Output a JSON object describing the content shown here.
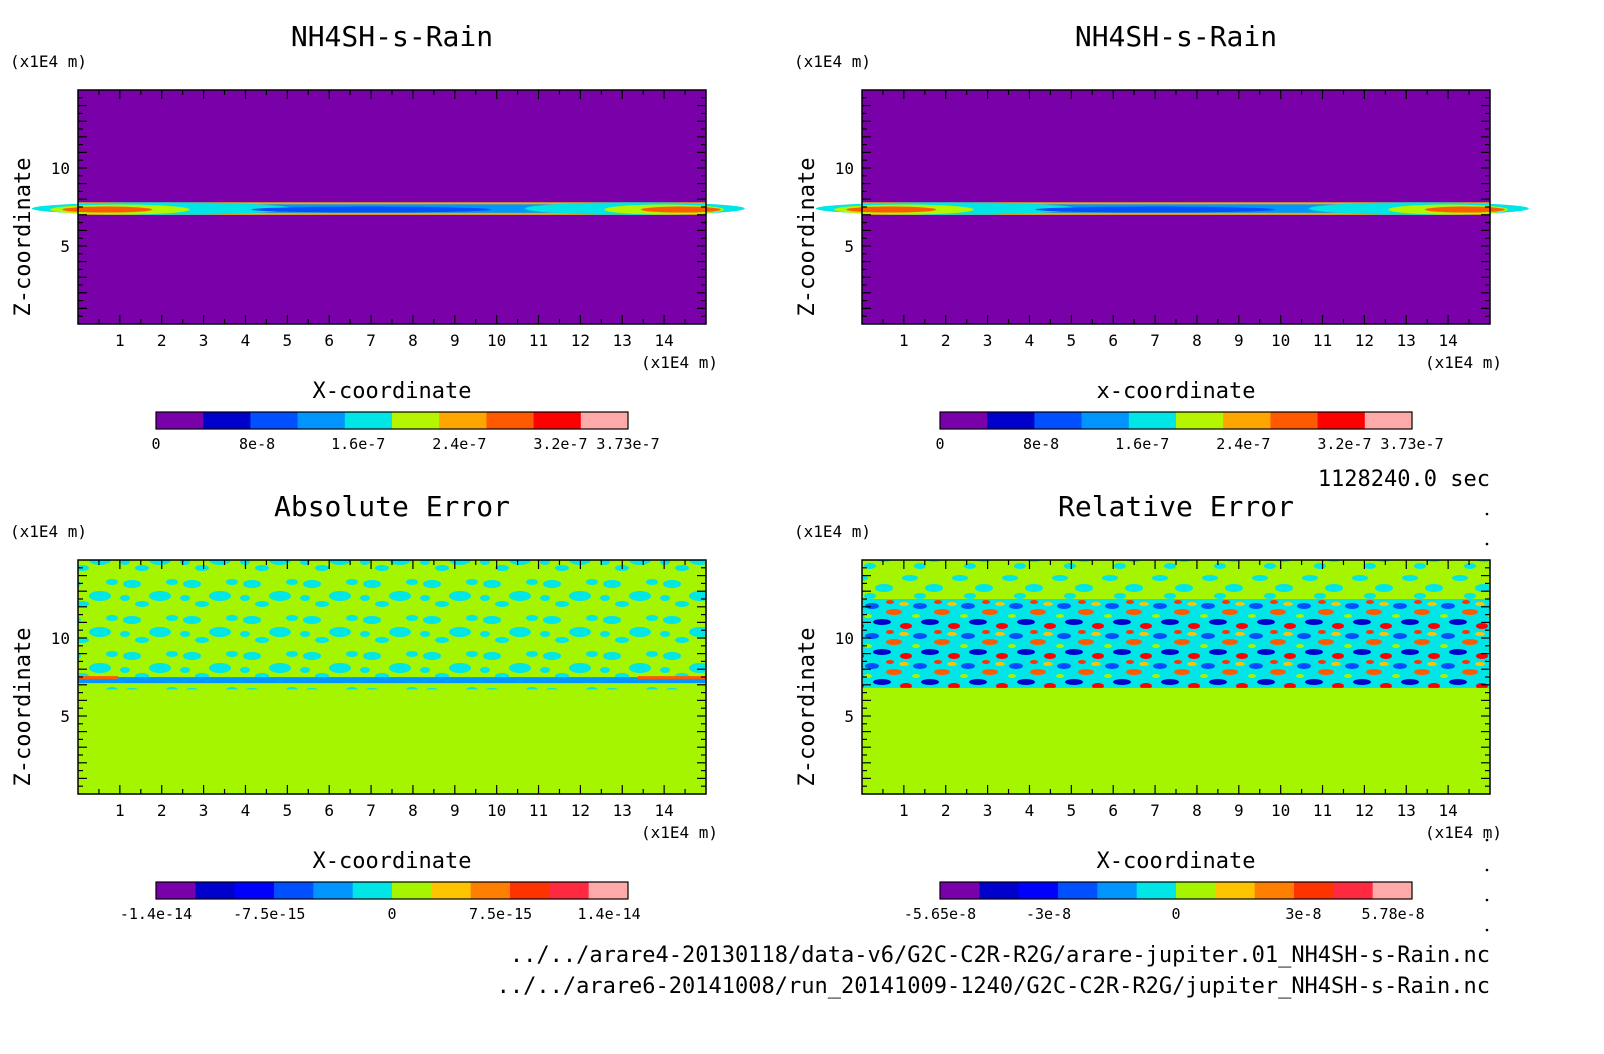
{
  "figure": {
    "time_label": "1128240.0 sec",
    "file_paths": [
      "../../arare4-20130118/data-v6/G2C-C2R-R2G/arare-jupiter.01_NH4SH-s-Rain.nc",
      "../../arare6-20141008/run_20141009-1240/G2C-C2R-R2G/jupiter_NH4SH-s-Rain.nc"
    ]
  },
  "chart_data": [
    {
      "type": "heatmap",
      "title": "NH4SH-s-Rain",
      "xlabel": "X-coordinate",
      "ylabel": "Z-coordinate",
      "x_unit": "(x1E4 m)",
      "y_unit": "(x1E4 m)",
      "xlim": [
        0,
        15
      ],
      "ylim": [
        0,
        15
      ],
      "xticks": [
        "1",
        "2",
        "3",
        "4",
        "5",
        "6",
        "7",
        "8",
        "9",
        "10",
        "11",
        "12",
        "13",
        "14"
      ],
      "yticks": [
        "5",
        "10"
      ],
      "colorbar": {
        "ticks": [
          "0",
          "8e-8",
          "1.6e-7",
          "2.4e-7",
          "3.2e-7",
          "3.73e-7"
        ],
        "colors": [
          "#7a00aa",
          "#0000cc",
          "#0050ff",
          "#0095ff",
          "#00e5e5",
          "#b5f500",
          "#ffa500",
          "#ff5a00",
          "#ff0000",
          "#ffaaaa"
        ]
      },
      "description_field": "thin layer near z 7-7.8, peaks at x 1-3 and x 13-15"
    },
    {
      "type": "heatmap",
      "title": "NH4SH-s-Rain",
      "xlabel": "x-coordinate",
      "ylabel": "Z-coordinate",
      "x_unit": "(x1E4 m)",
      "y_unit": "(x1E4 m)",
      "xlim": [
        0,
        15
      ],
      "ylim": [
        0,
        15
      ],
      "xticks": [
        "1",
        "2",
        "3",
        "4",
        "5",
        "6",
        "7",
        "8",
        "9",
        "10",
        "11",
        "12",
        "13",
        "14"
      ],
      "yticks": [
        "5",
        "10"
      ],
      "colorbar": {
        "ticks": [
          "0",
          "8e-8",
          "1.6e-7",
          "2.4e-7",
          "3.2e-7",
          "3.73e-7"
        ],
        "colors": [
          "#7a00aa",
          "#0000cc",
          "#0050ff",
          "#0095ff",
          "#00e5e5",
          "#b5f500",
          "#ffa500",
          "#ff5a00",
          "#ff0000",
          "#ffaaaa"
        ]
      }
    },
    {
      "type": "heatmap",
      "title": "Absolute Error",
      "xlabel": "X-coordinate",
      "ylabel": "Z-coordinate",
      "x_unit": "(x1E4 m)",
      "y_unit": "(x1E4 m)",
      "xlim": [
        0,
        15
      ],
      "ylim": [
        0,
        15
      ],
      "xticks": [
        "1",
        "2",
        "3",
        "4",
        "5",
        "6",
        "7",
        "8",
        "9",
        "10",
        "11",
        "12",
        "13",
        "14"
      ],
      "yticks": [
        "5",
        "10"
      ],
      "colorbar": {
        "ticks": [
          "-1.4e-14",
          "-7.5e-15",
          "0",
          "7.5e-15",
          "1.4e-14"
        ],
        "colors": [
          "#7a00aa",
          "#0000cc",
          "#0000ff",
          "#0050ff",
          "#0095ff",
          "#00e5e5",
          "#a5f500",
          "#ffc400",
          "#ff8000",
          "#ff3300",
          "#ff2a40",
          "#ffaaaa"
        ]
      }
    },
    {
      "type": "heatmap",
      "title": "Relative Error",
      "xlabel": "X-coordinate",
      "ylabel": "Z-coordinate",
      "x_unit": "(x1E4 m)",
      "y_unit": "(x1E4 m)",
      "xlim": [
        0,
        15
      ],
      "ylim": [
        0,
        15
      ],
      "xticks": [
        "1",
        "2",
        "3",
        "4",
        "5",
        "6",
        "7",
        "8",
        "9",
        "10",
        "11",
        "12",
        "13",
        "14"
      ],
      "yticks": [
        "5",
        "10"
      ],
      "colorbar": {
        "ticks": [
          "-5.65e-8",
          "-3e-8",
          "0",
          "3e-8",
          "5.78e-8"
        ],
        "colors": [
          "#7a00aa",
          "#0000cc",
          "#0000ff",
          "#0050ff",
          "#0095ff",
          "#00e5e5",
          "#a5f500",
          "#ffc400",
          "#ff8000",
          "#ff3300",
          "#ff2a40",
          "#ffaaaa"
        ]
      }
    }
  ]
}
